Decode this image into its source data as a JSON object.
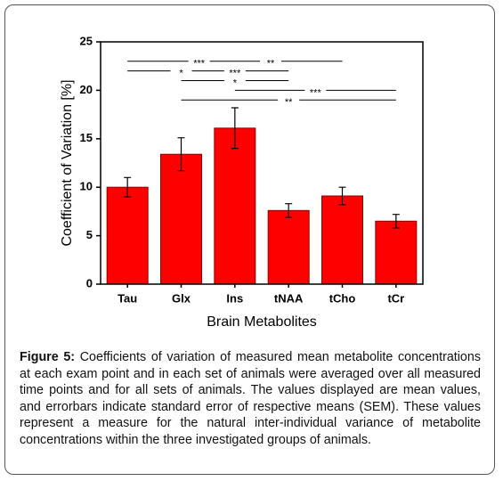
{
  "chart_data": {
    "type": "bar",
    "x_label": "Brain Metabolites",
    "y_label": "Coefficient of Variation [%]",
    "categories": [
      "Tau",
      "Glx",
      "Ins",
      "tNAA",
      "tCho",
      "tCr"
    ],
    "values": [
      10.0,
      13.4,
      16.1,
      7.6,
      9.1,
      6.5
    ],
    "errors": [
      1.0,
      1.7,
      2.1,
      0.7,
      0.9,
      0.7
    ],
    "color": "#ff0000",
    "ylim": [
      0,
      25
    ],
    "yticks": [
      0,
      5,
      10,
      15,
      20,
      25
    ],
    "significance": [
      {
        "from": "Tau",
        "to": "tCho",
        "y": 23,
        "labels": [
          "***",
          "**"
        ]
      },
      {
        "from": "Tau",
        "to": "tNAA",
        "y": 22,
        "labels": [
          "*",
          "***"
        ]
      },
      {
        "from": "Glx",
        "to": "tNAA",
        "y": 21,
        "labels": [
          "*"
        ]
      },
      {
        "from": "Ins",
        "to": "tCr",
        "y": 20,
        "labels": [
          "***"
        ]
      },
      {
        "from": "Glx",
        "to": "tCr",
        "y": 19,
        "labels": [
          "**"
        ]
      }
    ]
  },
  "caption": {
    "label": "Figure 5:",
    "text": "Coefficients of variation of measured mean metabolite concentrations at each exam point and in each set of animals were averaged over all measured time points and for all sets of animals. The values displayed are mean values, and errorbars indicate standard error of respective means (SEM). These values represent a measure for the natural inter-individual variance of metabolite concentrations within the three investigated groups of animals."
  }
}
